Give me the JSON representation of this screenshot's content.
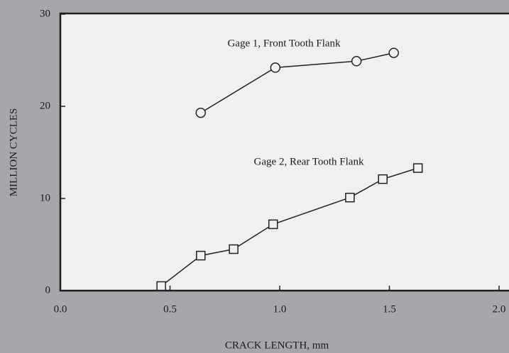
{
  "chart_data": {
    "type": "line",
    "xlabel": "CRACK LENGTH, mm",
    "ylabel": "MILLION CYCLES",
    "annotations": [
      "Gage 1, Front Tooth Flank",
      "Gage 2, Rear Tooth Flank"
    ],
    "series": [
      {
        "name": "Gage 1, Front Tooth Flank",
        "marker": "circle",
        "color": "#222222",
        "x": [
          0.64,
          0.98,
          1.35,
          1.52
        ],
        "values": [
          19.3,
          24.2,
          24.9,
          25.8
        ]
      },
      {
        "name": "Gage 2, Rear Tooth Flank",
        "marker": "square",
        "color": "#222222",
        "x": [
          0.46,
          0.64,
          0.79,
          0.97,
          1.32,
          1.47,
          1.63
        ],
        "values": [
          0.5,
          3.8,
          4.5,
          7.2,
          10.1,
          12.1,
          13.3
        ]
      }
    ],
    "xlim": [
      0,
      2
    ],
    "ylim": [
      0,
      30
    ],
    "xticks": [
      {
        "value": 0,
        "label": "0.0"
      },
      0.5,
      {
        "value": 1,
        "label": "1.0"
      },
      1.5,
      {
        "value": 2,
        "label": "2.0"
      }
    ],
    "yticks": [
      0,
      10,
      20,
      30
    ],
    "grid": false
  }
}
